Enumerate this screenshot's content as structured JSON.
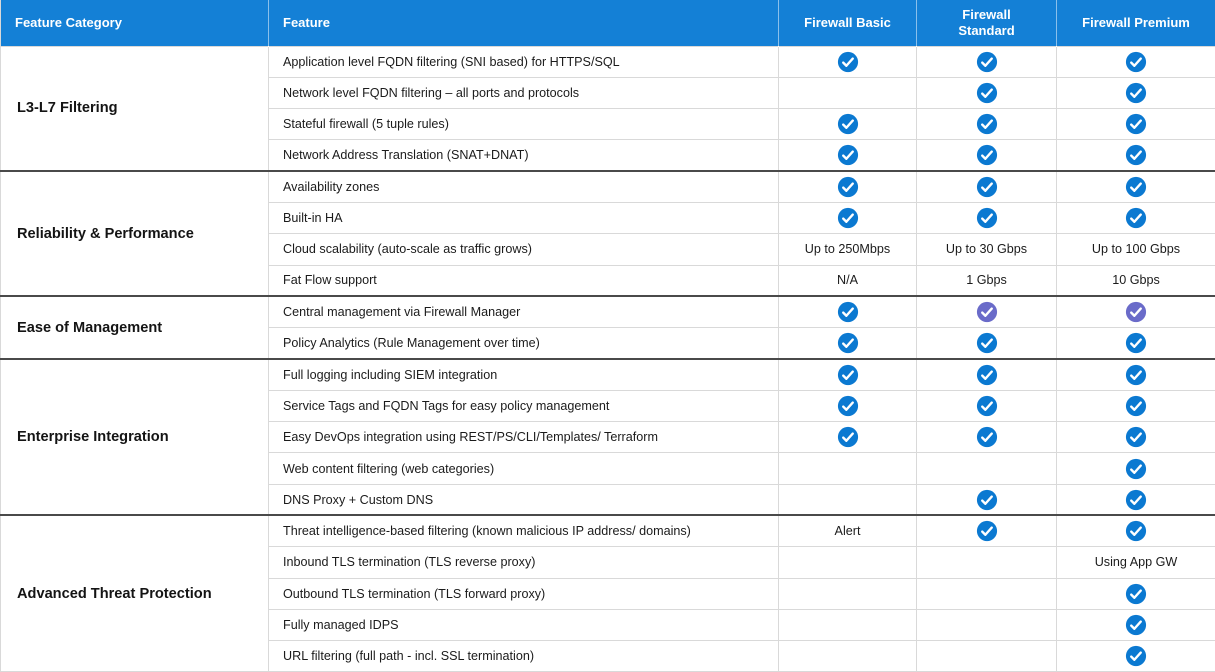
{
  "header": {
    "columns": [
      "Feature Category",
      "Feature",
      "Firewall Basic",
      "Firewall Standard",
      "Firewall Premium"
    ]
  },
  "colors": {
    "header_bg": "#1480d6",
    "header_text": "#ffffff",
    "body_text": "#1b1b1b",
    "check_blue": "#0b79d1",
    "check_purple": "#6a6bc9",
    "row_border": "#d9d9d9",
    "group_border": "#4a4a4a"
  },
  "groups": [
    {
      "category": "L3-L7 Filtering",
      "rows": [
        {
          "feature": "Application level FQDN filtering (SNI based) for HTTPS/SQL",
          "basic": "check",
          "standard": "check",
          "premium": "check"
        },
        {
          "feature": "Network level FQDN filtering – all ports and protocols",
          "basic": "",
          "standard": "check",
          "premium": "check"
        },
        {
          "feature": "Stateful firewall (5 tuple rules)",
          "basic": "check",
          "standard": "check",
          "premium": "check"
        },
        {
          "feature": "Network Address Translation (SNAT+DNAT)",
          "basic": "check",
          "standard": "check",
          "premium": "check"
        }
      ]
    },
    {
      "category": "Reliability & Performance",
      "rows": [
        {
          "feature": "Availability zones",
          "basic": "check",
          "standard": "check",
          "premium": "check"
        },
        {
          "feature": "Built-in HA",
          "basic": "check",
          "standard": "check",
          "premium": "check"
        },
        {
          "feature": "Cloud scalability (auto-scale as traffic grows)",
          "basic": "Up to 250Mbps",
          "standard": "Up to 30 Gbps",
          "premium": "Up to 100 Gbps"
        },
        {
          "feature": "Fat Flow support",
          "basic": "N/A",
          "standard": "1 Gbps",
          "premium": "10 Gbps"
        }
      ]
    },
    {
      "category": "Ease of Management",
      "rows": [
        {
          "feature": "Central management via Firewall Manager",
          "basic": "check",
          "standard": "check-alt",
          "premium": "check-alt"
        },
        {
          "feature": "Policy Analytics (Rule Management over time)",
          "basic": "check",
          "standard": "check",
          "premium": "check"
        }
      ]
    },
    {
      "category": "Enterprise Integration",
      "rows": [
        {
          "feature": "Full logging including SIEM integration",
          "basic": "check",
          "standard": "check",
          "premium": "check"
        },
        {
          "feature": "Service Tags and FQDN Tags for easy policy management",
          "basic": "check",
          "standard": "check",
          "premium": "check"
        },
        {
          "feature": "Easy DevOps integration using REST/PS/CLI/Templates/ Terraform",
          "basic": "check",
          "standard": "check",
          "premium": "check"
        },
        {
          "feature": "Web content filtering (web categories)",
          "basic": "",
          "standard": "",
          "premium": "check"
        },
        {
          "feature": "DNS Proxy + Custom DNS",
          "basic": "",
          "standard": "check",
          "premium": "check"
        }
      ]
    },
    {
      "category": "Advanced Threat Protection",
      "rows": [
        {
          "feature": "Threat intelligence-based filtering (known malicious IP address/ domains)",
          "basic": "Alert",
          "standard": "check",
          "premium": "check"
        },
        {
          "feature": "Inbound TLS termination (TLS reverse proxy)",
          "basic": "",
          "standard": "",
          "premium": "Using App GW"
        },
        {
          "feature": "Outbound TLS termination (TLS forward proxy)",
          "basic": "",
          "standard": "",
          "premium": "check"
        },
        {
          "feature": "Fully managed IDPS",
          "basic": "",
          "standard": "",
          "premium": "check"
        },
        {
          "feature": "URL filtering (full path - incl. SSL termination)",
          "basic": "",
          "standard": "",
          "premium": "check"
        }
      ]
    }
  ]
}
